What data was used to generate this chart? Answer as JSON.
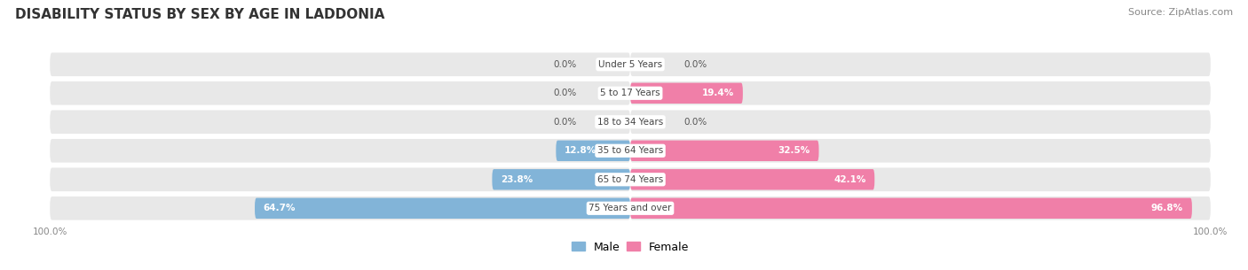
{
  "title": "DISABILITY STATUS BY SEX BY AGE IN LADDONIA",
  "source": "Source: ZipAtlas.com",
  "categories": [
    "Under 5 Years",
    "5 to 17 Years",
    "18 to 34 Years",
    "35 to 64 Years",
    "65 to 74 Years",
    "75 Years and over"
  ],
  "male_values": [
    0.0,
    0.0,
    0.0,
    12.8,
    23.8,
    64.7
  ],
  "female_values": [
    0.0,
    19.4,
    0.0,
    32.5,
    42.1,
    96.8
  ],
  "male_color": "#82b4d8",
  "female_color": "#f07fa8",
  "bar_bg_color": "#e8e8e8",
  "figsize": [
    14.06,
    3.05
  ],
  "dpi": 100,
  "title_fontsize": 11,
  "source_fontsize": 8,
  "value_fontsize": 7.5,
  "category_fontsize": 7.5,
  "legend_fontsize": 9,
  "xlim": 100.0
}
